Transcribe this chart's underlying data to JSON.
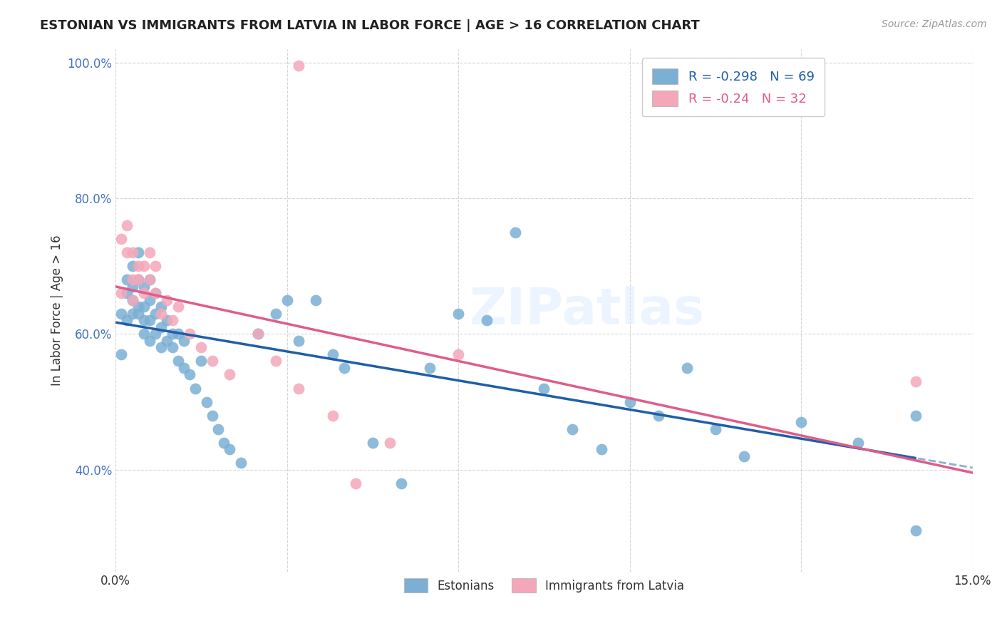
{
  "title": "ESTONIAN VS IMMIGRANTS FROM LATVIA IN LABOR FORCE | AGE > 16 CORRELATION CHART",
  "source": "Source: ZipAtlas.com",
  "ylabel_label": "In Labor Force | Age > 16",
  "xlim": [
    0.0,
    0.15
  ],
  "ylim": [
    0.25,
    1.02
  ],
  "x_ticks": [
    0.0,
    0.03,
    0.06,
    0.09,
    0.12,
    0.15
  ],
  "x_tick_labels": [
    "0.0%",
    "",
    "",
    "",
    "",
    "15.0%"
  ],
  "y_ticks": [
    0.4,
    0.6,
    0.8,
    1.0
  ],
  "y_tick_labels": [
    "40.0%",
    "60.0%",
    "80.0%",
    "100.0%"
  ],
  "blue_color": "#7BAFD4",
  "pink_color": "#F4A7B9",
  "blue_line_color": "#1F5FA6",
  "pink_line_color": "#E05C8A",
  "watermark": "ZIPatlas",
  "blue_r": -0.298,
  "blue_n": 69,
  "pink_r": -0.24,
  "pink_n": 32,
  "estonians_x": [
    0.001,
    0.001,
    0.002,
    0.002,
    0.002,
    0.003,
    0.003,
    0.003,
    0.003,
    0.004,
    0.004,
    0.004,
    0.004,
    0.005,
    0.005,
    0.005,
    0.005,
    0.006,
    0.006,
    0.006,
    0.006,
    0.007,
    0.007,
    0.007,
    0.008,
    0.008,
    0.008,
    0.009,
    0.009,
    0.01,
    0.01,
    0.011,
    0.011,
    0.012,
    0.012,
    0.013,
    0.014,
    0.015,
    0.016,
    0.017,
    0.018,
    0.019,
    0.02,
    0.022,
    0.025,
    0.028,
    0.03,
    0.032,
    0.035,
    0.038,
    0.04,
    0.045,
    0.05,
    0.055,
    0.06,
    0.065,
    0.07,
    0.075,
    0.08,
    0.085,
    0.09,
    0.095,
    0.1,
    0.105,
    0.11,
    0.12,
    0.13,
    0.14,
    0.14
  ],
  "estonians_y": [
    0.63,
    0.57,
    0.66,
    0.62,
    0.68,
    0.63,
    0.65,
    0.67,
    0.7,
    0.63,
    0.64,
    0.68,
    0.72,
    0.6,
    0.62,
    0.64,
    0.67,
    0.59,
    0.62,
    0.65,
    0.68,
    0.6,
    0.63,
    0.66,
    0.58,
    0.61,
    0.64,
    0.59,
    0.62,
    0.58,
    0.6,
    0.56,
    0.6,
    0.55,
    0.59,
    0.54,
    0.52,
    0.56,
    0.5,
    0.48,
    0.46,
    0.44,
    0.43,
    0.41,
    0.6,
    0.63,
    0.65,
    0.59,
    0.65,
    0.57,
    0.55,
    0.44,
    0.38,
    0.55,
    0.63,
    0.62,
    0.75,
    0.52,
    0.46,
    0.43,
    0.5,
    0.48,
    0.55,
    0.46,
    0.42,
    0.47,
    0.44,
    0.48,
    0.31
  ],
  "immigrants_x": [
    0.001,
    0.001,
    0.002,
    0.002,
    0.003,
    0.003,
    0.003,
    0.004,
    0.004,
    0.005,
    0.005,
    0.006,
    0.006,
    0.007,
    0.007,
    0.008,
    0.009,
    0.01,
    0.011,
    0.013,
    0.015,
    0.017,
    0.02,
    0.025,
    0.028,
    0.032,
    0.032,
    0.038,
    0.042,
    0.048,
    0.06,
    0.14
  ],
  "immigrants_y": [
    0.66,
    0.74,
    0.72,
    0.76,
    0.68,
    0.72,
    0.65,
    0.7,
    0.68,
    0.66,
    0.7,
    0.68,
    0.72,
    0.66,
    0.7,
    0.63,
    0.65,
    0.62,
    0.64,
    0.6,
    0.58,
    0.56,
    0.54,
    0.6,
    0.56,
    0.52,
    0.995,
    0.48,
    0.38,
    0.44,
    0.57,
    0.53
  ]
}
